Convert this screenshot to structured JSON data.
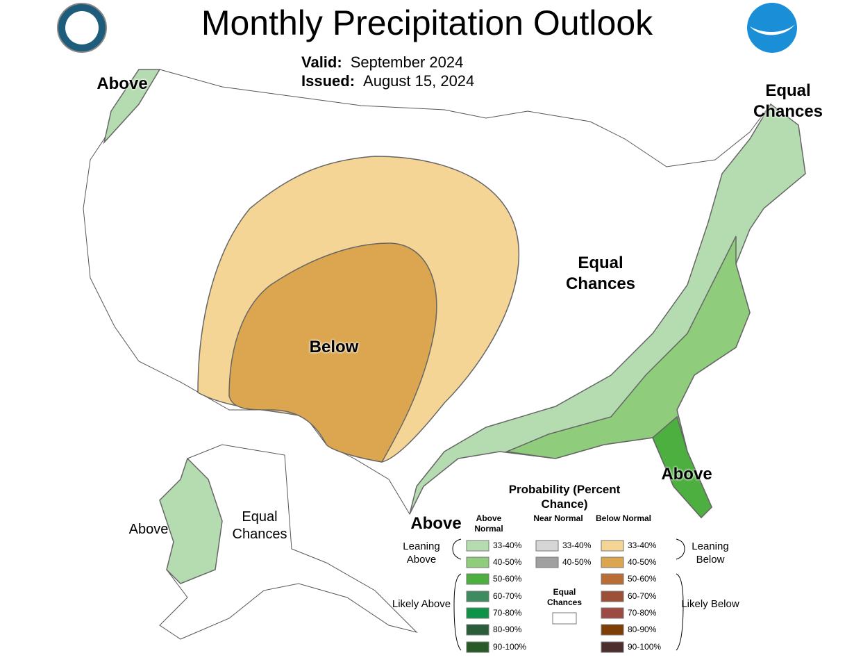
{
  "header": {
    "title": "Monthly Precipitation Outlook",
    "valid_label": "Valid:",
    "valid": "September 2024",
    "issued_label": "Issued:",
    "issued": "August 15, 2024"
  },
  "map_labels": [
    "Above",
    "Equal Chances",
    "Equal Chances",
    "Below",
    "Above",
    "Above",
    "Above",
    "Equal Chances"
  ],
  "legend": {
    "title": "Probability (Percent Chance)",
    "columns": [
      {
        "name": "Above Normal",
        "items": [
          {
            "label": "33-40%",
            "color": "#b5dcb0"
          },
          {
            "label": "40-50%",
            "color": "#8fcc7c"
          },
          {
            "label": "50-60%",
            "color": "#4caf3f"
          },
          {
            "label": "60-70%",
            "color": "#3d8b5e"
          },
          {
            "label": "70-80%",
            "color": "#0e9447"
          },
          {
            "label": "80-90%",
            "color": "#2a5e3b"
          },
          {
            "label": "90-100%",
            "color": "#285a28"
          }
        ]
      },
      {
        "name": "Near Normal",
        "items": [
          {
            "label": "33-40%",
            "color": "#d6d6d6"
          },
          {
            "label": "40-50%",
            "color": "#a0a0a0"
          }
        ]
      },
      {
        "name": "Below Normal",
        "items": [
          {
            "label": "33-40%",
            "color": "#f4d595"
          },
          {
            "label": "40-50%",
            "color": "#dba64f"
          },
          {
            "label": "50-60%",
            "color": "#b86d35"
          },
          {
            "label": "60-70%",
            "color": "#9e5036"
          },
          {
            "label": "70-80%",
            "color": "#9c4a42"
          },
          {
            "label": "80-90%",
            "color": "#7d3f06"
          },
          {
            "label": "90-100%",
            "color": "#4d2e2e"
          }
        ]
      }
    ],
    "groups": [
      "Leaning Above",
      "Likely Above",
      "Leaning Below",
      "Likely Below"
    ],
    "equal_chances": "Equal Chances"
  }
}
